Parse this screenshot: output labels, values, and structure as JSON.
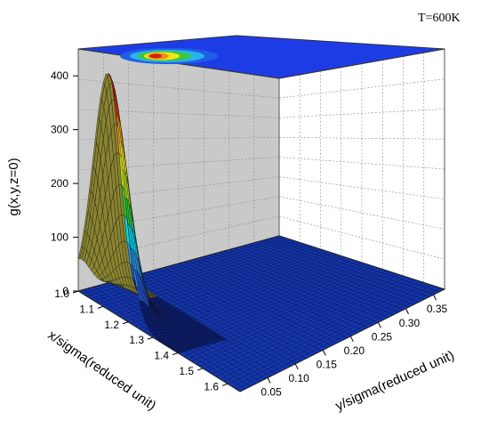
{
  "chart_data": {
    "type": "surface3d",
    "annotation": "T=600K",
    "zlabel": "g(x,y,z=0)",
    "xlabel": "x/sigma(reduced unit)",
    "ylabel": "y/sigma(reduced unit)",
    "x_ticks": [
      "1.0",
      "1.1",
      "1.2",
      "1.3",
      "1.4",
      "1.5",
      "1.6"
    ],
    "y_ticks": [
      "0.05",
      "0.10",
      "0.15",
      "0.20",
      "0.25",
      "0.30",
      "0.35"
    ],
    "z_ticks": [
      "0",
      "100",
      "200",
      "300",
      "400"
    ],
    "xlim": [
      1.0,
      1.65
    ],
    "ylim": [
      0.0,
      0.37
    ],
    "zlim": [
      0,
      450
    ],
    "peak": {
      "x": 1.12,
      "y": 0.0,
      "z": 440
    },
    "colormap": [
      "#0a1e78",
      "#1e50c8",
      "#2890dc",
      "#00dcf0",
      "#32c832",
      "#b4dc1e",
      "#f0e614",
      "#f0a01e",
      "#e63214",
      "#c80a0a"
    ],
    "colors": {
      "floor": "#1436a8",
      "top_plane": "#1e3ce6",
      "back_walls": "#c8c8c8",
      "ridge_side": "#6e6a28"
    }
  }
}
